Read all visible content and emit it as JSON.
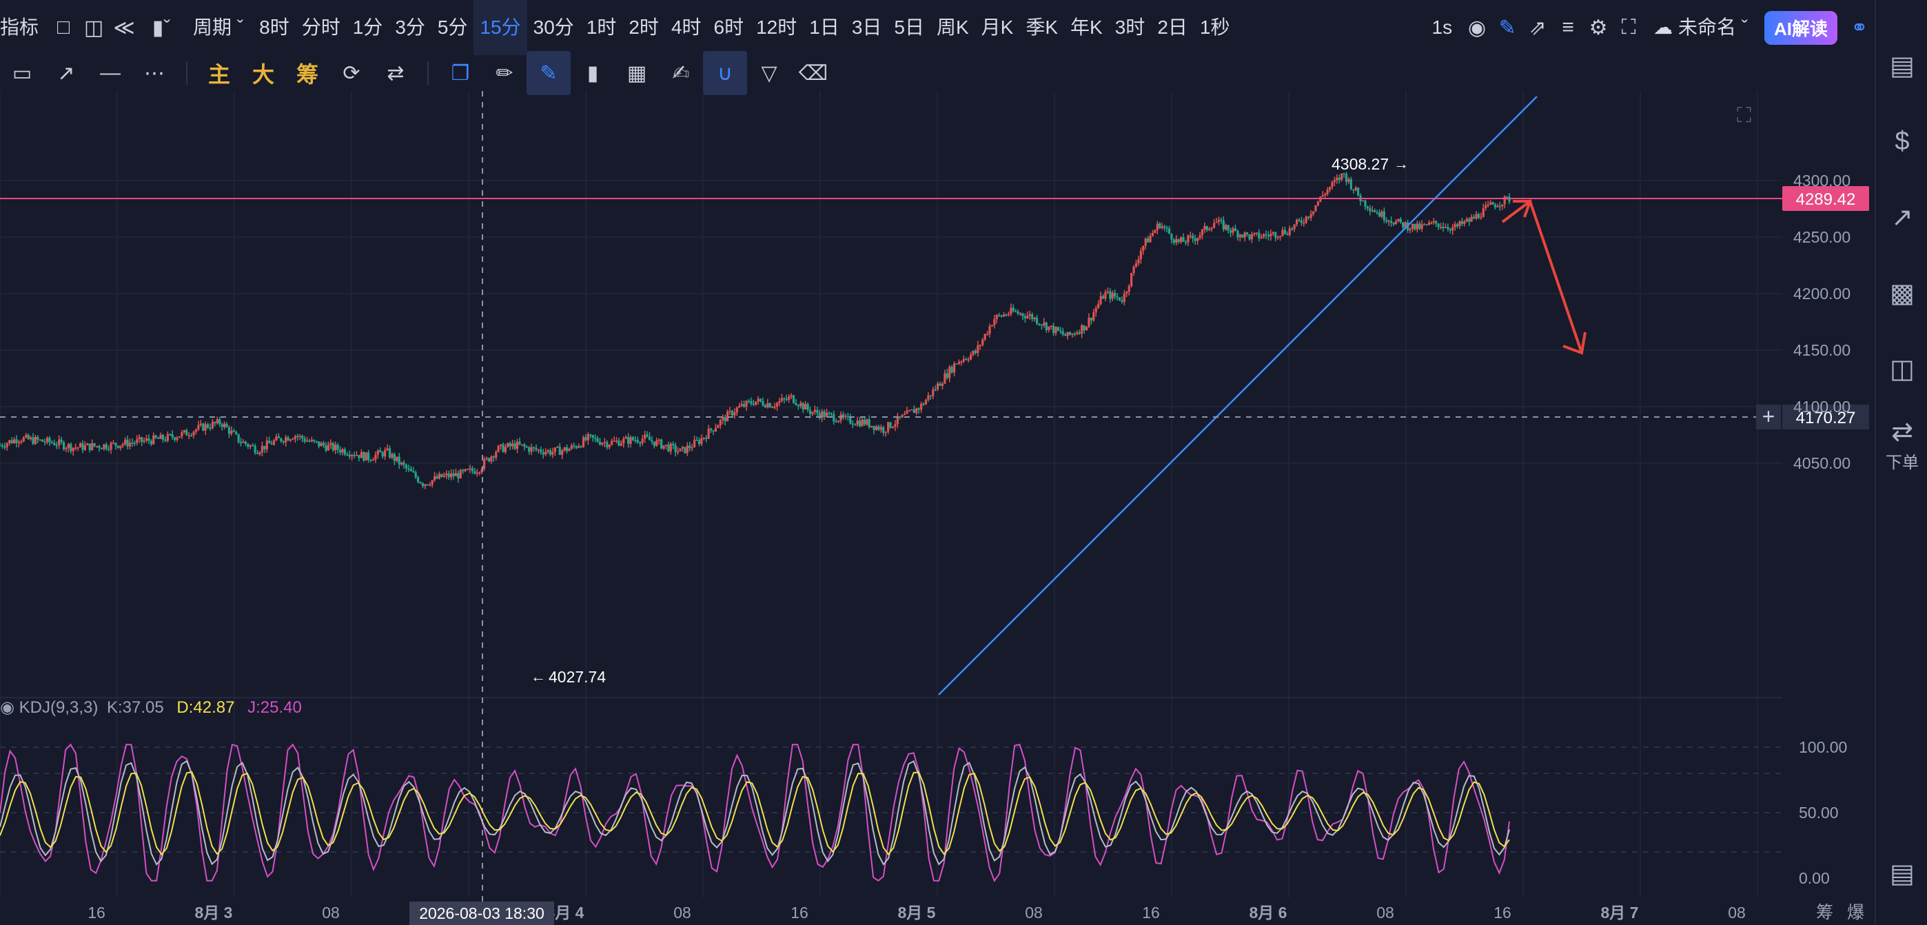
{
  "topbar": {
    "indicator_label": "指标",
    "period_label": "周期",
    "periods": [
      "8时",
      "分时",
      "1分",
      "3分",
      "5分",
      "15分",
      "30分",
      "1时",
      "2时",
      "4时",
      "6时",
      "12时",
      "1日",
      "3日",
      "5日",
      "周K",
      "月K",
      "季K",
      "年K",
      "3时",
      "2日",
      "1秒"
    ],
    "active_period": "15分",
    "interval_label": "1s",
    "layout_name": "未命名",
    "ai_label": "AI解读"
  },
  "toolbar": {
    "main_label": "主",
    "big_label": "大",
    "chip_label": "筹"
  },
  "rightbar": {
    "order_label": "下单"
  },
  "price_axis": {
    "ticks": [
      "4300.00",
      "4250.00",
      "4200.00",
      "4150.00",
      "4100.00",
      "4050.00"
    ],
    "current_price": "4289.42",
    "crosshair_price": "4170.27",
    "high_label": "4308.27",
    "low_label": "4027.74"
  },
  "kdj": {
    "name": "KDJ(9,3,3)",
    "k": "K:37.05",
    "d": "D:42.87",
    "j": "J:25.40",
    "ticks": [
      "100.00",
      "50.00",
      "0.00"
    ]
  },
  "time_axis": {
    "labels": [
      "16",
      "8月 3",
      "08",
      "16",
      "8月 4",
      "08",
      "16",
      "8月 5",
      "08",
      "16",
      "8月 6",
      "08",
      "16",
      "8月 7",
      "08"
    ],
    "crosshair_time": "2026-08-03 18:30",
    "footer_a": "筹",
    "footer_b": "爆"
  },
  "colors": {
    "up": "#e0524f",
    "down": "#23a58c",
    "price_line": "#e84a82",
    "trend_line": "#3a8bff",
    "arrow": "#e8453c",
    "k_line": "#b7bcc9",
    "d_line": "#f2e04a",
    "j_line": "#d64fc5"
  },
  "chart_data": {
    "type": "candlestick",
    "close_path": [
      4066,
      4072,
      4070,
      4068,
      4064,
      4065,
      4066,
      4068,
      4070,
      4072,
      4076,
      4082,
      4086,
      4070,
      4062,
      4070,
      4075,
      4068,
      4064,
      4060,
      4055,
      4060,
      4046,
      4032,
      4038,
      4040,
      4045,
      4062,
      4066,
      4062,
      4060,
      4063,
      4072,
      4068,
      4070,
      4072,
      4066,
      4060,
      4070,
      4085,
      4098,
      4105,
      4102,
      4108,
      4096,
      4092,
      4088,
      4086,
      4080,
      4090,
      4100,
      4120,
      4140,
      4148,
      4178,
      4184,
      4180,
      4170,
      4162,
      4172,
      4200,
      4195,
      4240,
      4262,
      4245,
      4250,
      4264,
      4255,
      4250,
      4252,
      4256,
      4268,
      4290,
      4306,
      4282,
      4270,
      4262,
      4258,
      4262,
      4258,
      4266,
      4278,
      4284
    ],
    "high": 4308.27,
    "low": 4027.74,
    "current": 4289.42,
    "y_range": [
      4010,
      4330
    ],
    "x_start": "8月 3",
    "x_end": "8月 7"
  }
}
